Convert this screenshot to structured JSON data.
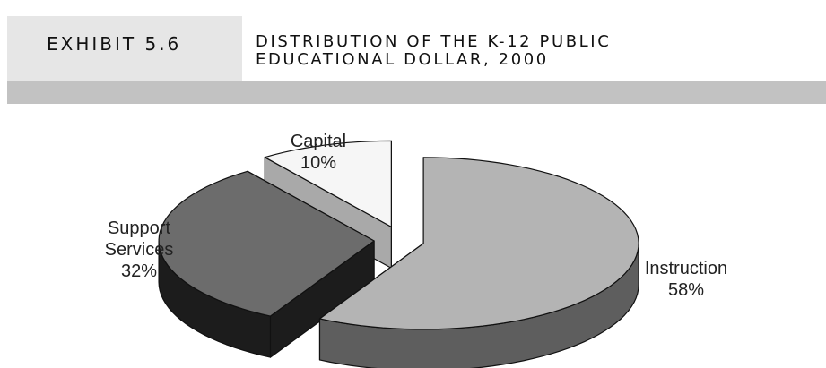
{
  "header": {
    "exhibit_label": "EXHIBIT 5.6",
    "title_line1": "DISTRIBUTION OF THE K-12 PUBLIC",
    "title_line2": "EDUCATIONAL DOLLAR, 2000"
  },
  "chart_data": {
    "type": "pie",
    "style": "3d-exploded",
    "title": "DISTRIBUTION OF THE K-12 PUBLIC EDUCATIONAL DOLLAR, 2000",
    "slices": [
      {
        "name": "Instruction",
        "value": 58,
        "value_label": "58%",
        "top_color": "#b4b4b4",
        "side_color": "#5e5e5e"
      },
      {
        "name": "Capital",
        "value": 10,
        "value_label": "10%",
        "top_color": "#f6f6f6",
        "side_color": "#a9a9a9"
      },
      {
        "name": "Support",
        "name_line2": "Services",
        "value": 32,
        "value_label": "32%",
        "top_color": "#6c6c6c",
        "side_color": "#1c1c1c"
      }
    ]
  }
}
